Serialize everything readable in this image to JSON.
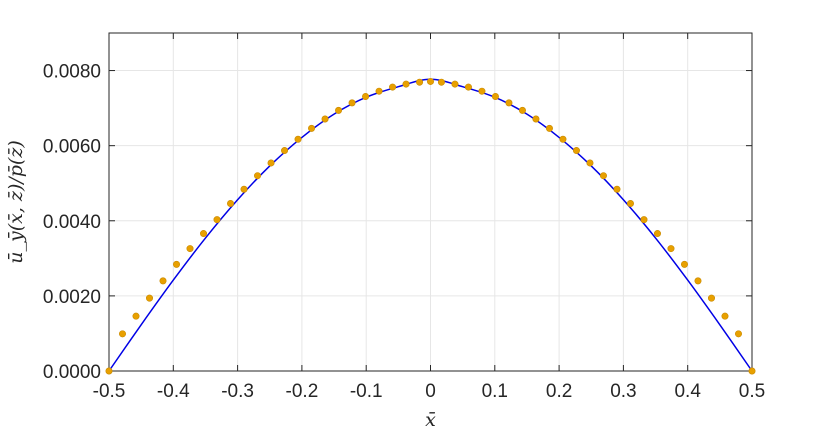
{
  "chart_data": {
    "type": "line",
    "title": "",
    "xlabel": "x̄",
    "ylabel": "ū_ȳ(x̄, z̄)/p̄(z̄)",
    "xlim": [
      -0.5,
      0.5
    ],
    "ylim": [
      0,
      0.009
    ],
    "grid": true,
    "legend": "none",
    "xticks": [
      {
        "value": -0.5,
        "label": "-0.5"
      },
      {
        "value": -0.4,
        "label": "-0.4"
      },
      {
        "value": -0.3,
        "label": "-0.3"
      },
      {
        "value": -0.2,
        "label": "-0.2"
      },
      {
        "value": -0.1,
        "label": "-0.1"
      },
      {
        "value": 0.0,
        "label": "0"
      },
      {
        "value": 0.1,
        "label": "0.1"
      },
      {
        "value": 0.2,
        "label": "0.2"
      },
      {
        "value": 0.3,
        "label": "0.3"
      },
      {
        "value": 0.4,
        "label": "0.4"
      },
      {
        "value": 0.5,
        "label": "0.5"
      }
    ],
    "yticks": [
      {
        "value": 0.0,
        "label": "0.0000"
      },
      {
        "value": 0.002,
        "label": "0.0020"
      },
      {
        "value": 0.004,
        "label": "0.0040"
      },
      {
        "value": 0.006,
        "label": "0.0060"
      },
      {
        "value": 0.008,
        "label": "0.0080"
      }
    ],
    "series": [
      {
        "style": "line",
        "color": "#0000e6",
        "x": [
          -0.5,
          -0.45,
          -0.4,
          -0.35,
          -0.3,
          -0.25,
          -0.2,
          -0.15,
          -0.1,
          -0.05,
          0.0,
          0.05,
          0.1,
          0.15,
          0.2,
          0.25,
          0.3,
          0.35,
          0.4,
          0.45,
          0.5
        ],
        "y": [
          0.0,
          0.00123,
          0.00242,
          0.00354,
          0.00456,
          0.00546,
          0.00622,
          0.00684,
          0.00729,
          0.00757,
          0.00777,
          0.00757,
          0.00729,
          0.00684,
          0.00622,
          0.00546,
          0.00456,
          0.00354,
          0.00242,
          0.00123,
          0.0
        ]
      },
      {
        "style": "markers",
        "color": "#e8a000",
        "x": [
          -0.5,
          -0.479,
          -0.458,
          -0.437,
          -0.416,
          -0.395,
          -0.374,
          -0.353,
          -0.332,
          -0.311,
          -0.29,
          -0.269,
          -0.248,
          -0.227,
          -0.206,
          -0.185,
          -0.164,
          -0.143,
          -0.122,
          -0.101,
          -0.08,
          -0.059,
          -0.038,
          -0.017,
          0.0,
          0.017,
          0.038,
          0.059,
          0.08,
          0.101,
          0.122,
          0.143,
          0.164,
          0.185,
          0.206,
          0.227,
          0.248,
          0.269,
          0.29,
          0.311,
          0.332,
          0.353,
          0.374,
          0.395,
          0.416,
          0.437,
          0.458,
          0.479,
          0.5
        ],
        "y": [
          0.0,
          0.00099,
          0.00146,
          0.00194,
          0.0024,
          0.00284,
          0.00326,
          0.00366,
          0.00403,
          0.00446,
          0.00484,
          0.0052,
          0.00554,
          0.00587,
          0.00617,
          0.00646,
          0.00671,
          0.00694,
          0.00714,
          0.00731,
          0.00745,
          0.00756,
          0.00764,
          0.00769,
          0.00771,
          0.00769,
          0.00764,
          0.00756,
          0.00745,
          0.00731,
          0.00714,
          0.00694,
          0.00671,
          0.00646,
          0.00617,
          0.00587,
          0.00554,
          0.0052,
          0.00484,
          0.00446,
          0.00403,
          0.00366,
          0.00326,
          0.00284,
          0.0024,
          0.00194,
          0.00146,
          0.00099,
          0.0
        ]
      }
    ]
  }
}
